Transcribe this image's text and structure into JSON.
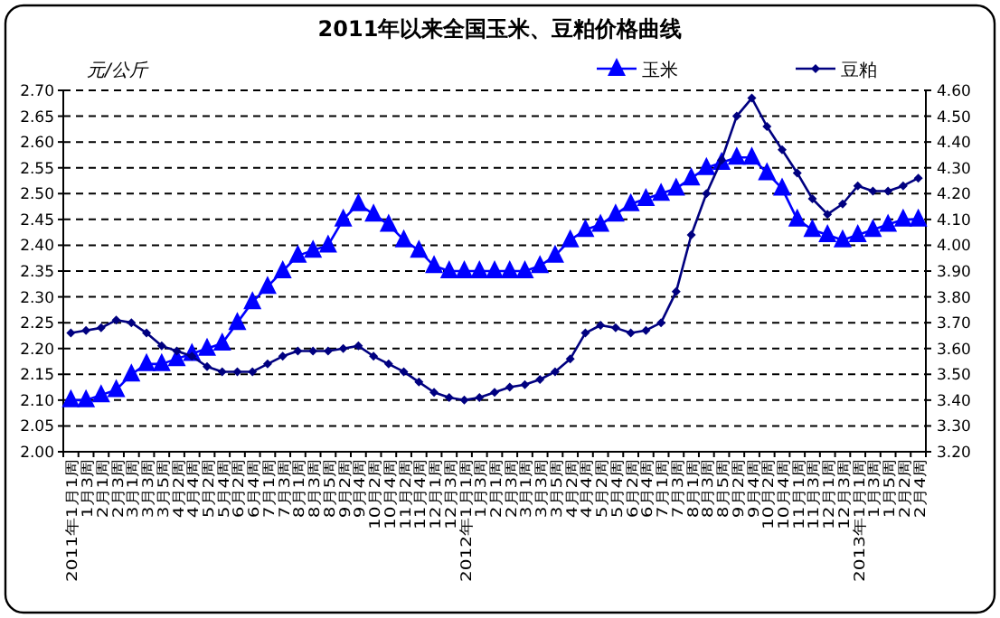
{
  "chart_data": {
    "type": "line",
    "title": "2011年以来全国玉米、豆粕价格曲线",
    "ylabel": "元/公斤",
    "categories": [
      "2011年1月1周",
      "1月3周",
      "2月1周",
      "2月3周",
      "3月1周",
      "3月3周",
      "3月5周",
      "4月2周",
      "4月4周",
      "5月2周",
      "5月4周",
      "6月2周",
      "6月4周",
      "7月1周",
      "7月3周",
      "8月1周",
      "8月3周",
      "8月5周",
      "9月2周",
      "9月4周",
      "10月2周",
      "10月4周",
      "11月2周",
      "11月4周",
      "12月1周",
      "12月3周",
      "2012年1月1周",
      "1月3周",
      "2月1周",
      "2月3周",
      "3月1周",
      "3月3周",
      "3月5周",
      "4月2周",
      "4月4周",
      "5月2周",
      "5月4周",
      "6月2周",
      "6月4周",
      "7月1周",
      "7月3周",
      "8月1周",
      "8月3周",
      "8月5周",
      "9月2周",
      "9月4周",
      "10月2周",
      "10月4周",
      "11月1周",
      "11月3周",
      "12月1周",
      "12月3周",
      "2013年1月1周",
      "1月3周",
      "1月5周",
      "2月2周",
      "2月4周"
    ],
    "series": [
      {
        "name": "玉米",
        "color": "#0000ff",
        "marker": "triangle",
        "values": [
          2.1,
          2.1,
          2.11,
          2.12,
          2.15,
          2.17,
          2.17,
          2.18,
          2.19,
          2.2,
          2.21,
          2.25,
          2.29,
          2.32,
          2.35,
          2.38,
          2.39,
          2.4,
          2.45,
          2.48,
          2.46,
          2.44,
          2.41,
          2.39,
          2.36,
          2.35,
          2.35,
          2.35,
          2.35,
          2.35,
          2.35,
          2.36,
          2.38,
          2.41,
          2.43,
          2.44,
          2.46,
          2.48,
          2.49,
          2.5,
          2.51,
          2.53,
          2.55,
          2.56,
          2.57,
          2.57,
          2.54,
          2.51,
          2.45,
          2.43,
          2.42,
          2.41,
          2.42,
          2.43,
          2.44,
          2.45,
          2.45
        ]
      },
      {
        "name": "豆粕",
        "color": "#000080",
        "marker": "diamond",
        "axis": "y2",
        "values": [
          3.66,
          3.67,
          3.68,
          3.71,
          3.7,
          3.66,
          3.61,
          3.59,
          3.57,
          3.53,
          3.51,
          3.51,
          3.51,
          3.54,
          3.57,
          3.59,
          3.59,
          3.59,
          3.6,
          3.61,
          3.57,
          3.54,
          3.51,
          3.47,
          3.43,
          3.41,
          3.4,
          3.41,
          3.43,
          3.45,
          3.46,
          3.48,
          3.51,
          3.56,
          3.66,
          3.69,
          3.68,
          3.66,
          3.67,
          3.7,
          3.82,
          4.04,
          4.2,
          4.33,
          4.5,
          4.57,
          4.46,
          4.37,
          4.28,
          4.18,
          4.12,
          4.16,
          4.23,
          4.21,
          4.21,
          4.23,
          4.26
        ]
      }
    ],
    "ylim": [
      2.0,
      2.7
    ],
    "yticks": [
      {
        "value": 2.0,
        "label": "2.00"
      },
      {
        "value": 2.05,
        "label": "2.05"
      },
      {
        "value": 2.1,
        "label": "2.10"
      },
      {
        "value": 2.15,
        "label": "2.15"
      },
      {
        "value": 2.2,
        "label": "2.20"
      },
      {
        "value": 2.25,
        "label": "2.25"
      },
      {
        "value": 2.3,
        "label": "2.30"
      },
      {
        "value": 2.35,
        "label": "2.35"
      },
      {
        "value": 2.4,
        "label": "2.40"
      },
      {
        "value": 2.45,
        "label": "2.45"
      },
      {
        "value": 2.5,
        "label": "2.50"
      },
      {
        "value": 2.55,
        "label": "2.55"
      },
      {
        "value": 2.6,
        "label": "2.60"
      },
      {
        "value": 2.65,
        "label": "2.65"
      },
      {
        "value": 2.7,
        "label": "2.70"
      }
    ],
    "y2lim": [
      3.2,
      4.6
    ],
    "y2ticks": [
      {
        "value": 3.2,
        "label": "3.20"
      },
      {
        "value": 3.3,
        "label": "3.30"
      },
      {
        "value": 3.4,
        "label": "3.40"
      },
      {
        "value": 3.5,
        "label": "3.50"
      },
      {
        "value": 3.6,
        "label": "3.60"
      },
      {
        "value": 3.7,
        "label": "3.70"
      },
      {
        "value": 3.8,
        "label": "3.80"
      },
      {
        "value": 3.9,
        "label": "3.90"
      },
      {
        "value": 4.0,
        "label": "4.00"
      },
      {
        "value": 4.1,
        "label": "4.10"
      },
      {
        "value": 4.2,
        "label": "4.20"
      },
      {
        "value": 4.3,
        "label": "4.30"
      },
      {
        "value": 4.4,
        "label": "4.40"
      },
      {
        "value": 4.5,
        "label": "4.50"
      },
      {
        "value": 4.6,
        "label": "4.60"
      }
    ],
    "grid": "y",
    "legend": "top right",
    "line_style": "solid"
  }
}
